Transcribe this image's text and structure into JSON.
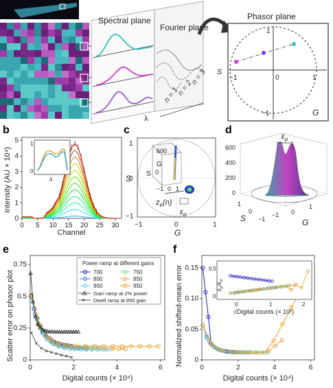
{
  "panel_a": {
    "letter": "a",
    "spectral_plane": "Spectral plane",
    "fourier_plane": "Fourier plane",
    "phasor_plane": "Phasor plane",
    "lambda": "λ",
    "s_label": "S",
    "g_label": "G",
    "n_labels": [
      "n = 1",
      "n = 2",
      "n = 3"
    ],
    "ticks": [
      "−1",
      "0",
      "1",
      "1",
      "−1"
    ],
    "colors": [
      "#2ec4c4",
      "#d23bd2",
      "#7a3bd2"
    ]
  },
  "panel_b": {
    "letter": "b",
    "ylabel": "Intensity (AU × 10⁴)",
    "xlabel": "Channel",
    "inset_xlabel": "λ",
    "inset_yticks": [
      "1",
      "0"
    ],
    "chart_data": {
      "type": "line",
      "x_ticks": [
        "0",
        "5",
        "10",
        "15",
        "20",
        "25",
        "30"
      ],
      "y_ticks": [
        "0",
        "1",
        "2",
        "3",
        "4",
        "5"
      ],
      "xlim": [
        0,
        32
      ],
      "ylim": [
        0,
        5.2
      ],
      "peak_channel": 17,
      "peak_value": 4.8,
      "n_curves": 12
    }
  },
  "panel_c": {
    "letter": "c",
    "s_label": "S",
    "g_label": "G",
    "ticks_x": [
      "−1",
      "0",
      "1"
    ],
    "ticks_y": [
      "1",
      "0",
      "−1"
    ],
    "inset_ticks": [
      "600",
      "0",
      "−1",
      "0",
      "1"
    ],
    "inset_g": "G",
    "inset_s": "S",
    "ze_label": "z",
    "ze_sub": "e",
    "ze_suffix": "(n)",
    "eps_label": "ε",
    "eps_sub": "σ"
  },
  "panel_d": {
    "letter": "d",
    "z_ticks": [
      "600",
      "400",
      "200",
      "0"
    ],
    "s_ticks": [
      "1",
      "0",
      "−1"
    ],
    "g_ticks": [
      "−1",
      "0",
      "1"
    ],
    "s_label": "S",
    "g_label": "G",
    "eps_label": "ε",
    "eps_sub": "μ"
  },
  "panel_e": {
    "letter": "e",
    "ylabel": "Scatter error on phasor plot",
    "xlabel": "Digital counts (× 10⁴)",
    "legend_title": "Power ramp at different gains",
    "legend_items": [
      {
        "label": "700",
        "color": "#1a1ab8"
      },
      {
        "label": "750",
        "color": "#6fdc6f"
      },
      {
        "label": "800",
        "color": "#2a6ae0"
      },
      {
        "label": "850",
        "color": "#e8a040"
      },
      {
        "label": "900",
        "color": "#60d0f0"
      },
      {
        "label": "950",
        "color": "#f0a020"
      }
    ],
    "legend_gain": "Gain ramp at 2% power",
    "legend_dwell": "Dwell ramp at 850 gain",
    "chart_data": {
      "type": "line",
      "x_ticks": [
        "0",
        "2",
        "4",
        "6"
      ],
      "y_ticks": [
        "0",
        "0.25",
        "0.5",
        "0.75"
      ],
      "xlim": [
        0,
        6.2
      ],
      "ylim": [
        0,
        0.82
      ]
    }
  },
  "panel_f": {
    "letter": "f",
    "ylabel": "Normalized shifted-mean error",
    "xlabel": "Digital counts (× 10⁴)",
    "inset_xlabel": "√Digital counts (× 10²)",
    "inset_ylabel_a": "ε",
    "inset_ylabel_b": "μ",
    "inset_ylabel_c": "/ε",
    "inset_ylabel_d": "σ",
    "inset_yticks": [
      "0.5",
      "0"
    ],
    "inset_xticks": [
      "0",
      "1",
      "2"
    ],
    "chart_data": {
      "type": "line",
      "x_ticks": [
        "0",
        "2",
        "4",
        "6"
      ],
      "y_ticks": [
        "0",
        "0.05",
        "0.10",
        "0.15"
      ],
      "xlim": [
        0,
        6.2
      ],
      "ylim": [
        0,
        0.17
      ]
    }
  }
}
